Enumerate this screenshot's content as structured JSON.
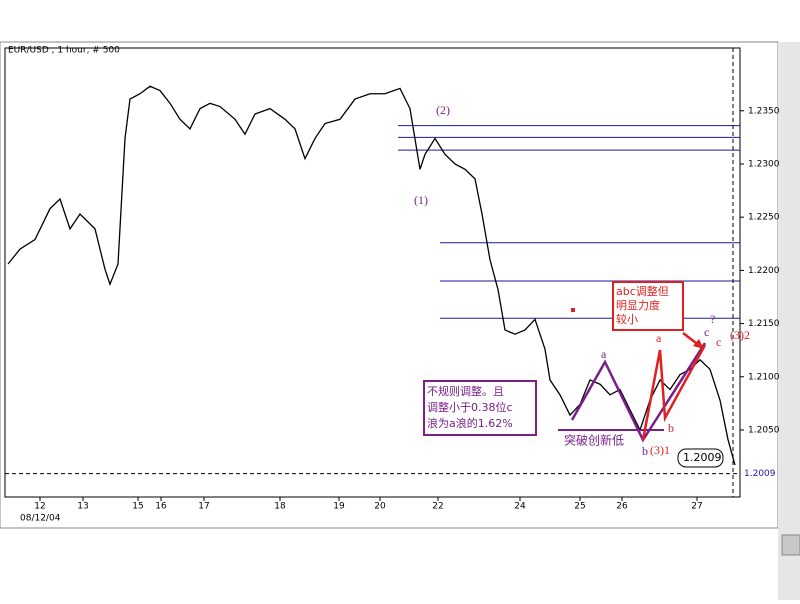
{
  "chart_data": {
    "type": "line",
    "title": "EUR/USD , 1 hour, # 500",
    "color": "#000000",
    "x": [
      8,
      20,
      35,
      50,
      60,
      70,
      80,
      95,
      105,
      110,
      118,
      125,
      130,
      140,
      150,
      160,
      170,
      180,
      190,
      200,
      210,
      220,
      235,
      245,
      255,
      270,
      285,
      295,
      305,
      315,
      325,
      340,
      355,
      370,
      385,
      400,
      410,
      420,
      425,
      435,
      445,
      455,
      465,
      475,
      482,
      490,
      498,
      505,
      515,
      525,
      535,
      545,
      550,
      560,
      570,
      580,
      590,
      600,
      610,
      620,
      630,
      640,
      650,
      660,
      670,
      680,
      690,
      700,
      710,
      720,
      728,
      735
    ],
    "values": [
      1.2206,
      1.222,
      1.2229,
      1.2258,
      1.2267,
      1.2239,
      1.2253,
      1.2239,
      1.2201,
      1.2187,
      1.2206,
      1.2324,
      1.2361,
      1.2366,
      1.2373,
      1.2369,
      1.2357,
      1.2342,
      1.2333,
      1.2352,
      1.2357,
      1.2354,
      1.2342,
      1.2328,
      1.2347,
      1.2352,
      1.2342,
      1.2333,
      1.2305,
      1.2324,
      1.2338,
      1.2342,
      1.2361,
      1.2366,
      1.2366,
      1.2371,
      1.2352,
      1.2295,
      1.2309,
      1.2324,
      1.2309,
      1.23,
      1.2295,
      1.2286,
      1.2253,
      1.221,
      1.2182,
      1.2144,
      1.214,
      1.2144,
      1.2154,
      1.2126,
      1.2097,
      1.2083,
      1.2064,
      1.2074,
      1.2097,
      1.2093,
      1.2083,
      1.2088,
      1.2069,
      1.205,
      1.2078,
      1.2097,
      1.2088,
      1.2102,
      1.2107,
      1.2116,
      1.2107,
      1.2078,
      1.2041,
      1.2017
    ],
    "xlim": [
      5,
      740
    ],
    "xticks": [
      {
        "value": 40,
        "label": "12"
      },
      {
        "value": 83,
        "label": "13"
      },
      {
        "value": 138,
        "label": "15"
      },
      {
        "value": 161,
        "label": "16"
      },
      {
        "value": 204,
        "label": "17"
      },
      {
        "value": 280,
        "label": "18"
      },
      {
        "value": 339,
        "label": "19"
      },
      {
        "value": 380,
        "label": "20"
      },
      {
        "value": 438,
        "label": "22"
      },
      {
        "value": 520,
        "label": "24"
      },
      {
        "value": 580,
        "label": "25"
      },
      {
        "value": 622,
        "label": "26"
      },
      {
        "value": 697,
        "label": "27"
      }
    ],
    "date_label": "08/12/04",
    "ylim": [
      1.1987,
      1.2409
    ],
    "yticks": [
      {
        "value": 1.205,
        "label": "1.2050"
      },
      {
        "value": 1.21,
        "label": "1.2100"
      },
      {
        "value": 1.215,
        "label": "1.2150"
      },
      {
        "value": 1.22,
        "label": "1.2200"
      },
      {
        "value": 1.225,
        "label": "1.2250"
      },
      {
        "value": 1.23,
        "label": "1.2300"
      },
      {
        "value": 1.235,
        "label": "1.2350"
      }
    ],
    "levels": [
      1.2336,
      1.2325,
      1.2313,
      1.2226,
      1.219,
      1.2155
    ],
    "last_price": {
      "value": 1.2009,
      "label": "1.2009"
    },
    "annotations": [
      "(2)",
      "(1)",
      "a",
      "a",
      "b",
      "b",
      "(3)1",
      "c",
      "c",
      "?",
      "(3)2",
      "1.2009",
      "突破创新低",
      "不规则调整。且",
      "调整小于0.38位c",
      "浪为a浪的1.62%",
      "abc调整但",
      "明显力度",
      "较小"
    ]
  }
}
